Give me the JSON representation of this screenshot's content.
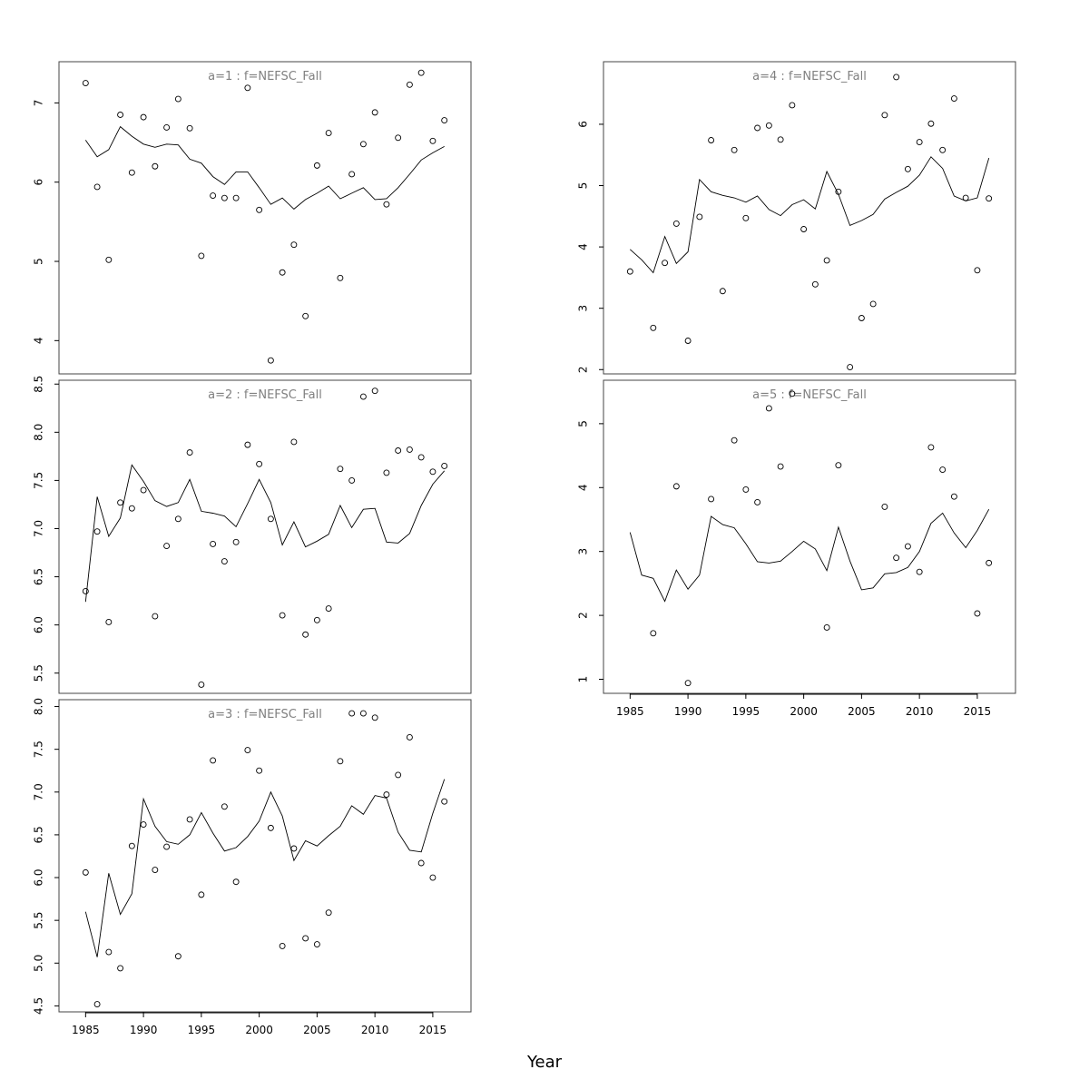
{
  "xlabel": "Year",
  "colors": {
    "title": "#808080",
    "line": "#000000",
    "points": "#000000",
    "frame": "#444444"
  },
  "chart_data": [
    {
      "type": "line",
      "title": "a=1  :  f=NEFSC_Fall",
      "years": [
        1985,
        1986,
        1987,
        1988,
        1989,
        1990,
        1991,
        1992,
        1993,
        1994,
        1995,
        1996,
        1997,
        1998,
        1999,
        2000,
        2001,
        2002,
        2003,
        2004,
        2005,
        2006,
        2007,
        2008,
        2009,
        2010,
        2011,
        2012,
        2013,
        2014,
        2015,
        2016
      ],
      "xlim": [
        1982.7,
        2018.3
      ],
      "ylim": [
        3.58,
        7.52
      ],
      "yticks": [
        "4",
        "5",
        "6",
        "7"
      ],
      "series": [
        {
          "kind": "fitted",
          "values": [
            6.53,
            6.32,
            6.41,
            6.7,
            6.58,
            6.48,
            6.44,
            6.48,
            6.47,
            6.29,
            6.24,
            6.07,
            5.97,
            6.13,
            6.13,
            5.93,
            5.72,
            5.8,
            5.66,
            5.78,
            5.86,
            5.95,
            5.79,
            5.86,
            5.93,
            5.78,
            5.79,
            5.93,
            6.1,
            6.28,
            6.37,
            6.45
          ]
        },
        {
          "kind": "observed",
          "values": [
            7.25,
            5.94,
            5.02,
            6.85,
            6.12,
            6.82,
            6.2,
            6.69,
            7.05,
            6.68,
            5.07,
            5.83,
            5.8,
            5.8,
            7.19,
            5.65,
            3.75,
            4.86,
            5.21,
            4.31,
            6.21,
            6.62,
            4.79,
            6.1,
            6.48,
            6.88,
            5.72,
            6.56,
            7.23,
            7.38,
            6.52,
            6.78
          ]
        }
      ]
    },
    {
      "type": "line",
      "title": "a=2  :  f=NEFSC_Fall",
      "years": [
        1985,
        1986,
        1987,
        1988,
        1989,
        1990,
        1991,
        1992,
        1993,
        1994,
        1995,
        1996,
        1997,
        1998,
        1999,
        2000,
        2001,
        2002,
        2003,
        2004,
        2005,
        2006,
        2007,
        2008,
        2009,
        2010,
        2011,
        2012,
        2013,
        2014,
        2015,
        2016
      ],
      "xlim": [
        1982.7,
        2018.3
      ],
      "ylim": [
        5.29,
        8.54
      ],
      "yticks": [
        "5.5",
        "6.0",
        "6.5",
        "7.0",
        "7.5",
        "8.0",
        "8.5"
      ],
      "series": [
        {
          "kind": "fitted",
          "values": [
            6.24,
            7.33,
            6.92,
            7.11,
            7.66,
            7.49,
            7.29,
            7.23,
            7.27,
            7.51,
            7.18,
            7.16,
            7.13,
            7.02,
            7.26,
            7.51,
            7.27,
            6.83,
            7.07,
            6.81,
            6.87,
            6.94,
            7.24,
            7.01,
            7.2,
            7.21,
            6.86,
            6.85,
            6.95,
            7.24,
            7.46,
            7.6
          ]
        },
        {
          "kind": "observed",
          "values": [
            6.35,
            6.97,
            6.03,
            7.27,
            7.21,
            7.4,
            6.09,
            6.82,
            7.1,
            7.79,
            5.38,
            6.84,
            6.66,
            6.86,
            7.87,
            7.67,
            7.1,
            6.1,
            7.9,
            5.9,
            6.05,
            6.17,
            7.62,
            7.5,
            8.37,
            8.43,
            7.58,
            7.81,
            7.82,
            7.74,
            7.59,
            7.65
          ]
        }
      ]
    },
    {
      "type": "line",
      "title": "a=3  :  f=NEFSC_Fall",
      "years": [
        1985,
        1986,
        1987,
        1988,
        1989,
        1990,
        1991,
        1992,
        1993,
        1994,
        1995,
        1996,
        1997,
        1998,
        1999,
        2000,
        2001,
        2002,
        2003,
        2004,
        2005,
        2006,
        2007,
        2008,
        2009,
        2010,
        2011,
        2012,
        2013,
        2014,
        2015,
        2016
      ],
      "xlim": [
        1982.7,
        2018.3
      ],
      "ylim": [
        4.43,
        8.08
      ],
      "yticks": [
        "4.5",
        "5.0",
        "5.5",
        "6.0",
        "6.5",
        "7.0",
        "7.5",
        "8.0"
      ],
      "series": [
        {
          "kind": "fitted",
          "values": [
            5.6,
            5.07,
            6.05,
            5.57,
            5.81,
            6.92,
            6.6,
            6.42,
            6.39,
            6.5,
            6.76,
            6.52,
            6.31,
            6.35,
            6.48,
            6.66,
            7.0,
            6.72,
            6.2,
            6.43,
            6.37,
            6.49,
            6.6,
            6.84,
            6.74,
            6.96,
            6.93,
            6.53,
            6.32,
            6.3,
            6.75,
            7.15
          ]
        },
        {
          "kind": "observed",
          "values": [
            6.06,
            4.52,
            5.13,
            4.94,
            6.37,
            6.62,
            6.09,
            6.36,
            5.08,
            6.68,
            5.8,
            7.37,
            6.83,
            5.95,
            7.49,
            7.25,
            6.58,
            5.2,
            6.34,
            5.29,
            5.22,
            5.59,
            7.36,
            7.92,
            7.92,
            7.87,
            6.97,
            7.2,
            7.64,
            6.17,
            6.0,
            6.89
          ]
        }
      ]
    },
    {
      "type": "line",
      "title": "a=4  :  f=NEFSC_Fall",
      "years": [
        1985,
        1986,
        1987,
        1988,
        1989,
        1990,
        1991,
        1992,
        1993,
        1994,
        1995,
        1996,
        1997,
        1998,
        1999,
        2000,
        2001,
        2002,
        2003,
        2004,
        2005,
        2006,
        2007,
        2008,
        2009,
        2010,
        2011,
        2012,
        2013,
        2014,
        2015,
        2016
      ],
      "xlim": [
        1982.7,
        2018.3
      ],
      "ylim": [
        1.93,
        7.02
      ],
      "yticks": [
        "2",
        "3",
        "4",
        "5",
        "6"
      ],
      "series": [
        {
          "kind": "fitted",
          "values": [
            3.96,
            3.79,
            3.58,
            4.17,
            3.73,
            3.92,
            5.1,
            4.9,
            4.84,
            4.8,
            4.73,
            4.83,
            4.61,
            4.51,
            4.69,
            4.77,
            4.62,
            5.23,
            4.86,
            4.35,
            4.43,
            4.53,
            4.78,
            4.89,
            4.99,
            5.17,
            5.47,
            5.28,
            4.83,
            4.75,
            4.8,
            5.45
          ]
        },
        {
          "kind": "observed",
          "values": [
            3.6,
            null,
            2.68,
            3.74,
            4.38,
            2.47,
            4.49,
            5.74,
            3.28,
            5.58,
            4.47,
            5.94,
            5.98,
            5.75,
            6.31,
            4.29,
            3.39,
            3.78,
            4.9,
            2.04,
            2.84,
            3.07,
            6.15,
            6.77,
            5.27,
            5.71,
            6.01,
            5.58,
            6.42,
            4.8,
            3.62,
            4.79
          ]
        }
      ]
    },
    {
      "type": "line",
      "title": "a=5  :  f=NEFSC_Fall",
      "years": [
        1985,
        1986,
        1987,
        1988,
        1989,
        1990,
        1991,
        1992,
        1993,
        1994,
        1995,
        1996,
        1997,
        1998,
        1999,
        2000,
        2001,
        2002,
        2003,
        2004,
        2005,
        2006,
        2007,
        2008,
        2009,
        2010,
        2011,
        2012,
        2013,
        2014,
        2015,
        2016
      ],
      "xlim": [
        1982.7,
        2018.3
      ],
      "ylim": [
        0.78,
        5.68
      ],
      "yticks": [
        "1",
        "2",
        "3",
        "4",
        "5"
      ],
      "xticks": [
        "1985",
        "1990",
        "1995",
        "2000",
        "2005",
        "2010",
        "2015"
      ],
      "series": [
        {
          "kind": "fitted",
          "values": [
            3.3,
            2.63,
            2.58,
            2.22,
            2.71,
            2.41,
            2.63,
            3.55,
            3.42,
            3.37,
            3.12,
            2.84,
            2.82,
            2.85,
            3.0,
            3.16,
            3.04,
            2.7,
            3.38,
            2.85,
            2.4,
            2.43,
            2.65,
            2.67,
            2.75,
            3.0,
            3.44,
            3.6,
            3.29,
            3.06,
            3.33,
            3.66
          ]
        },
        {
          "kind": "observed",
          "values": [
            null,
            null,
            1.72,
            null,
            4.02,
            0.94,
            null,
            3.82,
            null,
            4.74,
            3.97,
            3.77,
            5.24,
            4.33,
            5.47,
            null,
            null,
            1.81,
            4.35,
            null,
            null,
            null,
            3.7,
            2.9,
            3.08,
            2.68,
            4.63,
            4.28,
            3.86,
            null,
            2.03,
            2.82
          ]
        }
      ]
    }
  ],
  "bottom_xticks": [
    "1985",
    "1990",
    "1995",
    "2000",
    "2005",
    "2010",
    "2015"
  ]
}
